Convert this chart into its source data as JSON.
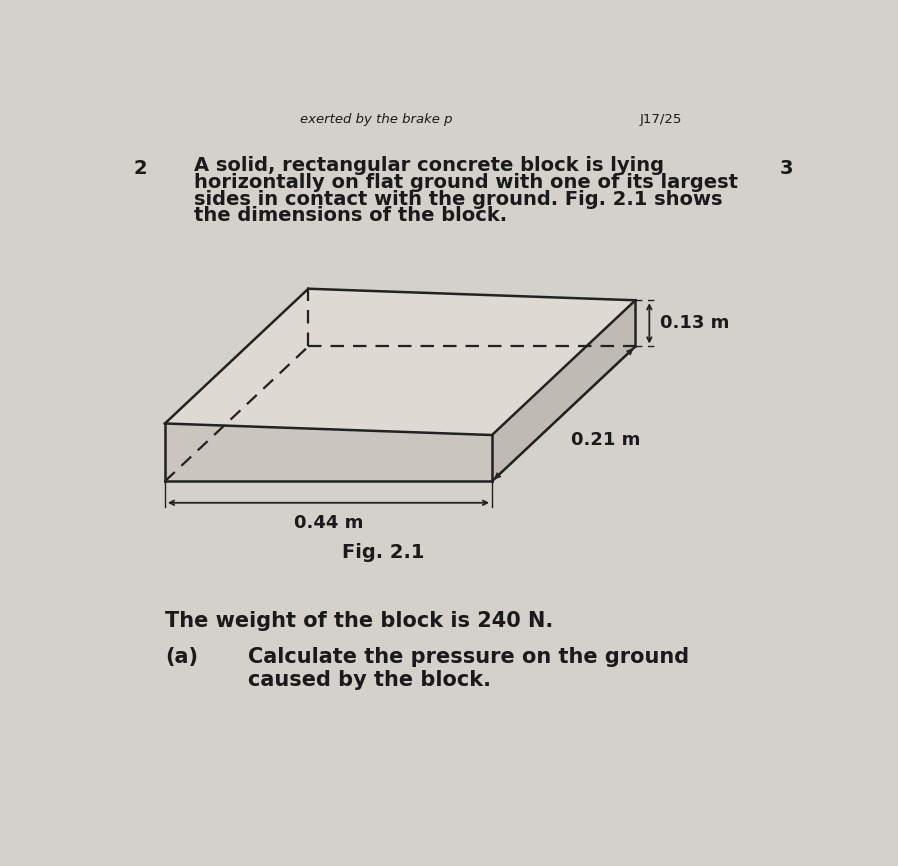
{
  "bg_color": "#d4d0cb",
  "page_color": "#e8e4dc",
  "text_color": "#1a1a1a",
  "header_text": "exerted by the brake p",
  "header_right": "J17/25",
  "question_num": "2",
  "marks": "3",
  "q_line1": "A solid, rectangular concrete block is lying",
  "q_line2": "horizontally on flat ground with one of its largest",
  "q_line3": "sides in contact with the ground. Fig. 2.1 shows",
  "q_line4": "the dimensions of the block.",
  "fig_label": "Fig. 2.1",
  "dim_length": "0.44 m",
  "dim_width": "0.21 m",
  "dim_height": "0.13 m",
  "weight_text": "The weight of the block is 240 N.",
  "part_a_label": "(a)",
  "part_a_line1": "Calculate the pressure on the ground",
  "part_a_line2": "caused by the block.",
  "block_top_color": "#dedad3",
  "block_front_color": "#cac6bf",
  "block_right_color": "#bfbbb4",
  "block_line_color": "#222222",
  "arrow_color": "#111111"
}
